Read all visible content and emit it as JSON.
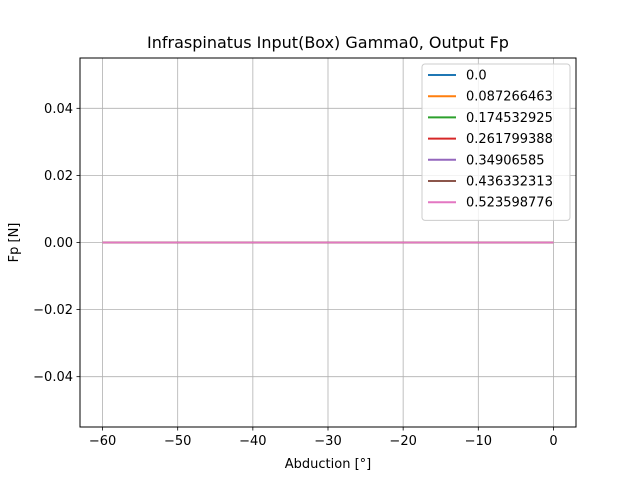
{
  "chart_data": {
    "type": "line",
    "title": "Infraspinatus Input(Box) Gamma0, Output Fp",
    "xlabel": "Abduction [°]",
    "ylabel": "Fp [N]",
    "xlim": [
      -63,
      3
    ],
    "ylim": [
      -0.055,
      0.055
    ],
    "xticks": [
      -60,
      -50,
      -40,
      -30,
      -20,
      -10,
      0
    ],
    "xtick_labels": [
      "−60",
      "−50",
      "−40",
      "−30",
      "−20",
      "−10",
      "0"
    ],
    "yticks": [
      0.04,
      0.02,
      0.0,
      -0.02,
      -0.04
    ],
    "ytick_labels": [
      "0.04",
      "0.02",
      "0.00",
      "−0.02",
      "−0.04"
    ],
    "grid": true,
    "legend_position": "top-right",
    "x": [
      -60,
      0
    ],
    "series": [
      {
        "name": "0.0",
        "color": "#1f77b4",
        "values": [
          0,
          0
        ]
      },
      {
        "name": "0.087266463",
        "color": "#ff7f0e",
        "values": [
          0,
          0
        ]
      },
      {
        "name": "0.174532925",
        "color": "#2ca02c",
        "values": [
          0,
          0
        ]
      },
      {
        "name": "0.261799388",
        "color": "#d62728",
        "values": [
          0,
          0
        ]
      },
      {
        "name": "0.34906585",
        "color": "#9467bd",
        "values": [
          0,
          0
        ]
      },
      {
        "name": "0.436332313",
        "color": "#8c564b",
        "values": [
          0,
          0
        ]
      },
      {
        "name": "0.523598776",
        "color": "#e377c2",
        "values": [
          0,
          0
        ]
      }
    ]
  }
}
